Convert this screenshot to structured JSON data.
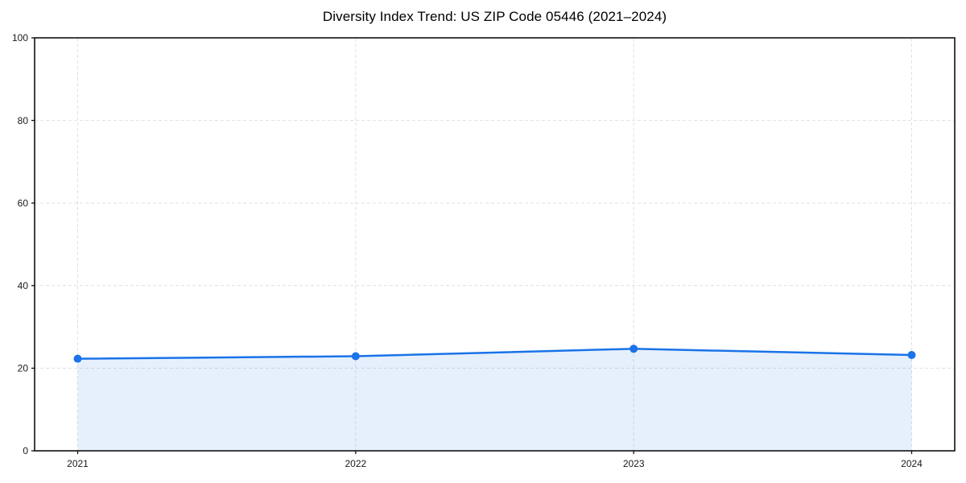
{
  "chart": {
    "title": "Diversity Index Trend: US ZIP Code 05446 (2021–2024)"
  },
  "chart_data": {
    "type": "area",
    "title": "Diversity Index Trend: US ZIP Code 05446 (2021–2024)",
    "categories": [
      "2021",
      "2022",
      "2023",
      "2024"
    ],
    "values": [
      22.3,
      22.9,
      24.7,
      23.2
    ],
    "series": [
      {
        "name": "Diversity Index",
        "values": [
          22.3,
          22.9,
          24.7,
          23.2
        ]
      }
    ],
    "xlabel": "",
    "ylabel": "",
    "ylim": [
      0,
      100
    ],
    "yticks": [
      0,
      20,
      40,
      60,
      80,
      100
    ],
    "grid": true,
    "grid_style": "dashed",
    "legend_position": "none",
    "colors": {
      "line": "#1a73e8",
      "marker": "#1a73e8",
      "fill": "#1a73e8",
      "fill_opacity": "0.11",
      "grid": "#e0e0e0",
      "spine": "#111111",
      "tick_label": "#1a1a1a",
      "background": "#ffffff"
    }
  }
}
